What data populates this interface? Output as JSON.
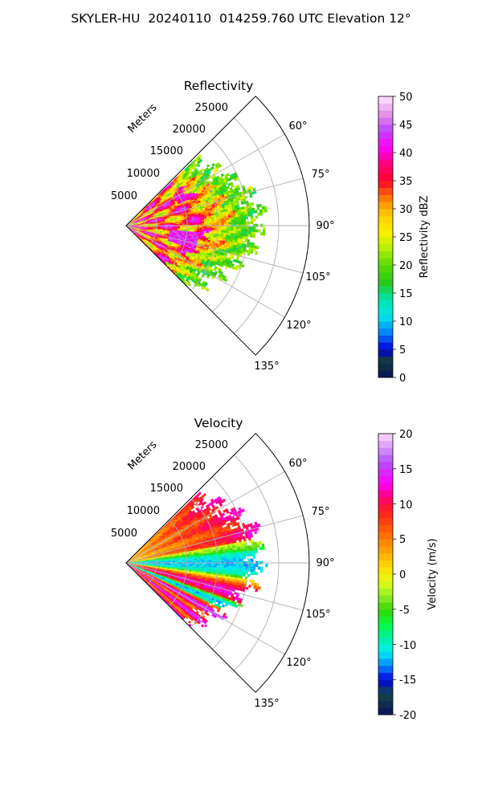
{
  "title": "SKYLER-HU  20240110  014259.760 UTC Elevation 12°",
  "chart_data": [
    {
      "type": "heatmap",
      "title": "Reflectivity",
      "range_label": "Meters",
      "range_ticks": [
        5000,
        10000,
        15000,
        20000,
        25000
      ],
      "angle_ticks": [
        "60°",
        "75°",
        "90°",
        "105°",
        "120°",
        "135°"
      ],
      "azimuth_range_deg": [
        45,
        135
      ],
      "max_range_m": 30000,
      "colorbar": {
        "label": "Reflectivity dBZ",
        "min": 0,
        "max": 50,
        "ticks": [
          0,
          5,
          10,
          15,
          20,
          25,
          30,
          35,
          40,
          45,
          50
        ]
      },
      "field_summary": [
        {
          "zone": "near 0-12000 m",
          "dominant": "35-45 dBZ red/magenta bands with 25-30 dBZ yellow"
        },
        {
          "zone": "mid 12000-17000 m",
          "dominant": "25-35 dBZ yellow/orange"
        },
        {
          "zone": "far 17000-22000 m",
          "dominant": "18-22 dBZ green"
        }
      ]
    },
    {
      "type": "heatmap",
      "title": "Velocity",
      "range_label": "Meters",
      "range_ticks": [
        5000,
        10000,
        15000,
        20000,
        25000
      ],
      "angle_ticks": [
        "60°",
        "75°",
        "90°",
        "105°",
        "120°",
        "135°"
      ],
      "azimuth_range_deg": [
        45,
        135
      ],
      "max_range_m": 30000,
      "colorbar": {
        "label": "Velocity (m/s)",
        "min": -20,
        "max": 20,
        "ticks": [
          -20,
          -15,
          -10,
          -5,
          0,
          5,
          10,
          15,
          20
        ]
      },
      "field_summary": [
        {
          "zone": "azimuth 55-80 deg",
          "dominant": "0 to +10 m/s yellow/orange/red"
        },
        {
          "zone": "azimuth 85-95 deg",
          "dominant": "-5 to -12 m/s green/cyan"
        },
        {
          "zone": "azimuth 100-110 deg",
          "dominant": "+5 to +12 m/s orange/red"
        },
        {
          "zone": "azimuth 110-125 deg",
          "dominant": "-12 to +15 m/s mixed cyan/green/magenta"
        }
      ]
    }
  ]
}
